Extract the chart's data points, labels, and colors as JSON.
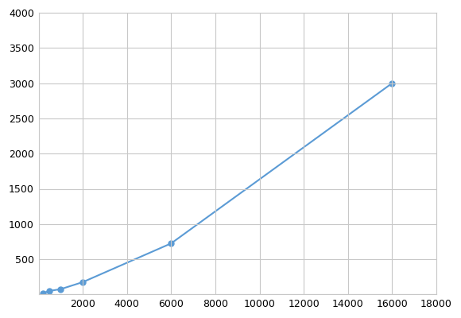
{
  "x": [
    200,
    500,
    1000,
    2000,
    6000,
    16000
  ],
  "y": [
    20,
    50,
    75,
    175,
    725,
    3000
  ],
  "line_color": "#5b9bd5",
  "marker_color": "#5b9bd5",
  "marker_size": 5,
  "line_width": 1.5,
  "xlim": [
    0,
    18000
  ],
  "ylim": [
    0,
    4000
  ],
  "xticks": [
    0,
    2000,
    4000,
    6000,
    8000,
    10000,
    12000,
    14000,
    16000,
    18000
  ],
  "yticks": [
    0,
    500,
    1000,
    1500,
    2000,
    2500,
    3000,
    3500,
    4000
  ],
  "grid_color": "#c8c8c8",
  "grid_alpha": 1.0,
  "background_color": "#ffffff",
  "tick_fontsize": 9,
  "figsize": [
    5.8,
    4.0
  ],
  "dpi": 100
}
